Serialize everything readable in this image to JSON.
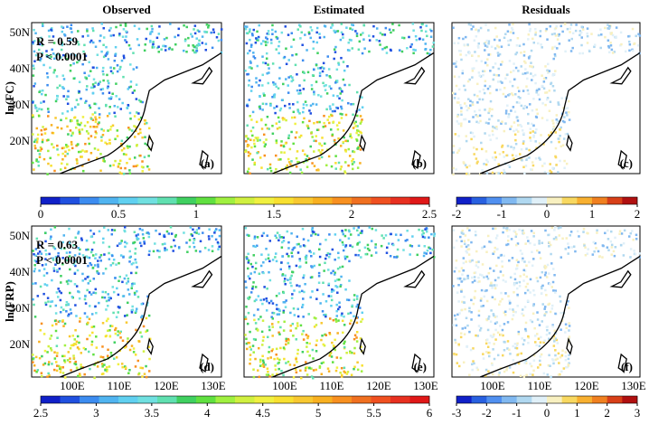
{
  "columns": [
    "Observed",
    "Estimated",
    "Residuals"
  ],
  "rows": [
    {
      "label": "ln(FC)",
      "stats": [
        "R = 0.59",
        "P < 0.0001"
      ],
      "panels": [
        "(a)",
        "(b)",
        "(c)"
      ]
    },
    {
      "label": "ln(FRP)",
      "stats": [
        "R = 0.63",
        "P < 0.0001"
      ],
      "panels": [
        "(d)",
        "(e)",
        "(f)"
      ]
    }
  ],
  "lat_ticks": [
    "50N",
    "40N",
    "30N",
    "20N"
  ],
  "lon_ticks": [
    "100E",
    "110E",
    "120E",
    "130E"
  ],
  "colorbars": [
    {
      "lim": [
        0,
        2.5
      ],
      "ticks": [
        0,
        0.5,
        1,
        1.5,
        2,
        2.5
      ],
      "colors": [
        "#1020c8",
        "#2050e0",
        "#3c8cf0",
        "#50b4f0",
        "#60d0f0",
        "#70e0e0",
        "#60e0b0",
        "#40d060",
        "#60e040",
        "#a0f040",
        "#d0f040",
        "#f0f040",
        "#f8e030",
        "#f8c830",
        "#f8b020",
        "#f89020",
        "#f07020",
        "#f05020",
        "#e83020",
        "#e01818"
      ]
    },
    {
      "lim": [
        -2,
        2
      ],
      "ticks": [
        -2,
        -1,
        0,
        1,
        2
      ],
      "colors": [
        "#1020c8",
        "#2860e0",
        "#5090f0",
        "#80b8f0",
        "#b0d8f0",
        "#e0f0f8",
        "#f8f0c0",
        "#f8d860",
        "#f8b030",
        "#f08020",
        "#d84018",
        "#b01010"
      ]
    },
    {
      "lim": [
        2.5,
        6
      ],
      "ticks": [
        2.5,
        3,
        3.5,
        4,
        4.5,
        5,
        5.5,
        6
      ],
      "colors": [
        "#1020c8",
        "#2050e0",
        "#3c8cf0",
        "#50b4f0",
        "#60d0f0",
        "#70e0e0",
        "#60e0b0",
        "#40d060",
        "#60e040",
        "#a0f040",
        "#d0f040",
        "#f0f040",
        "#f8e030",
        "#f8c830",
        "#f8b020",
        "#f89020",
        "#f07020",
        "#f05020",
        "#e83020",
        "#e01818"
      ]
    },
    {
      "lim": [
        -3,
        3
      ],
      "ticks": [
        -3,
        -2,
        -1,
        0,
        1,
        2,
        3
      ],
      "colors": [
        "#1020c8",
        "#2860e0",
        "#5090f0",
        "#80b8f0",
        "#b0d8f0",
        "#e0f0f8",
        "#f8f0c0",
        "#f8d860",
        "#f8b030",
        "#f08020",
        "#d84018",
        "#b01010"
      ]
    }
  ]
}
